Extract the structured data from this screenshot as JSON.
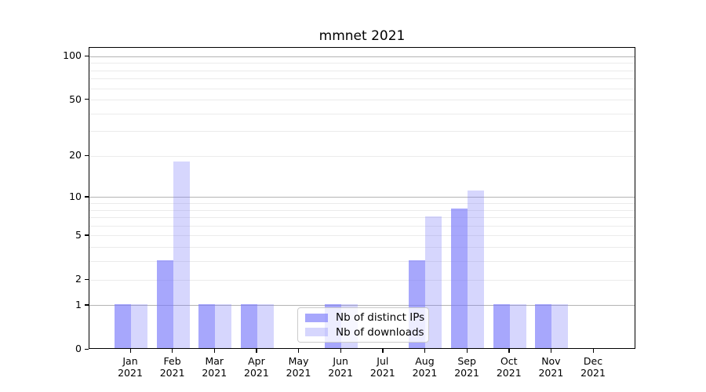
{
  "chart_data": {
    "type": "bar",
    "title": "mmnet 2021",
    "categories": [
      "Jan",
      "Feb",
      "Mar",
      "Apr",
      "May",
      "Jun",
      "Jul",
      "Aug",
      "Sep",
      "Oct",
      "Nov",
      "Dec"
    ],
    "year_label": "2021",
    "series": [
      {
        "name": "Nb of distinct IPs",
        "color": "rgba(120,120,250,0.65)",
        "values": [
          1,
          3,
          1,
          1,
          0,
          1,
          0,
          3,
          8,
          1,
          1,
          0
        ]
      },
      {
        "name": "Nb of downloads",
        "color": "rgba(120,120,250,0.30)",
        "values": [
          1,
          18,
          1,
          1,
          0,
          1,
          0,
          7,
          11,
          1,
          1,
          0
        ]
      }
    ],
    "y_axis": {
      "scale": "log1p",
      "max": 115,
      "ticks": [
        0,
        1,
        2,
        5,
        10,
        20,
        50,
        100
      ],
      "major_gridlines": [
        1,
        10,
        100
      ],
      "minor_gridlines": [
        2,
        3,
        4,
        5,
        6,
        7,
        8,
        9,
        20,
        30,
        40,
        50,
        60,
        70,
        80,
        90
      ]
    },
    "x_axis": {
      "ylim_bottom": 0
    },
    "legend": {
      "position": "lower-center"
    },
    "colors": {
      "grid_major": "#b4b4b4",
      "grid_minor": "#ebebeb",
      "spine": "#000000",
      "text": "#000000"
    }
  }
}
